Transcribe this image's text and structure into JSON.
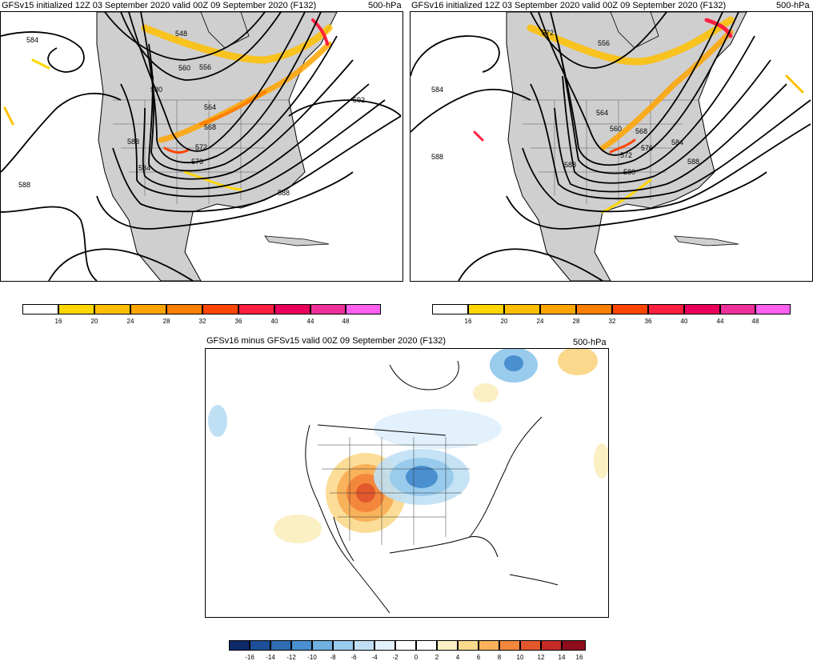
{
  "panels": {
    "left": {
      "title": "GFSv15 initialized 12Z 03 September 2020 valid 00Z 09 September 2020 (F132)",
      "level": "500-hPa",
      "contour_labels": [
        "584",
        "548",
        "560",
        "556",
        "580",
        "592",
        "564",
        "568",
        "572",
        "576",
        "588",
        "584",
        "588",
        "588"
      ]
    },
    "right": {
      "title": "GFSv16 initialized 12Z 03 September 2020 valid 00Z 09 September 2020 (F132)",
      "level": "500-hPa",
      "contour_labels": [
        "572",
        "556",
        "584",
        "588",
        "564",
        "560",
        "568",
        "572",
        "576",
        "584",
        "580",
        "588",
        "588"
      ]
    },
    "bottom": {
      "title": "GFSv16 minus GFSv15 valid 00Z 09 September 2020 (F132)",
      "level": "500-hPa"
    }
  },
  "wind_colorbar": {
    "ticks": [
      "16",
      "20",
      "24",
      "28",
      "32",
      "36",
      "40",
      "44",
      "48"
    ],
    "colors": [
      "#ffffff",
      "#ffd700",
      "#ffbf00",
      "#ffa500",
      "#ff7f00",
      "#ff4500",
      "#ff1f3f",
      "#e8005a",
      "#f0309a",
      "#ff60f0"
    ]
  },
  "diff_colorbar": {
    "ticks": [
      "-16",
      "-14",
      "-12",
      "-10",
      "-8",
      "-6",
      "-4",
      "-2",
      "0",
      "2",
      "4",
      "6",
      "8",
      "10",
      "12",
      "14",
      "16"
    ],
    "colors": [
      "#0d2a6b",
      "#1f4e9a",
      "#2f6db3",
      "#4a8fd0",
      "#6fb0e0",
      "#98cbec",
      "#bfe0f4",
      "#e2f1fb",
      "#ffffff",
      "#ffffff",
      "#fbefc4",
      "#fbd98c",
      "#f8b25a",
      "#f3873c",
      "#e2582c",
      "#c42b26",
      "#8e0d1c"
    ]
  },
  "colors": {
    "land": "#cfcfcf",
    "ocean": "#ffffff",
    "height_contour": "#000000",
    "jet_core": "#ffa500",
    "warm_anomaly": "#f08a3a",
    "cold_anomaly": "#3a7fc8"
  }
}
